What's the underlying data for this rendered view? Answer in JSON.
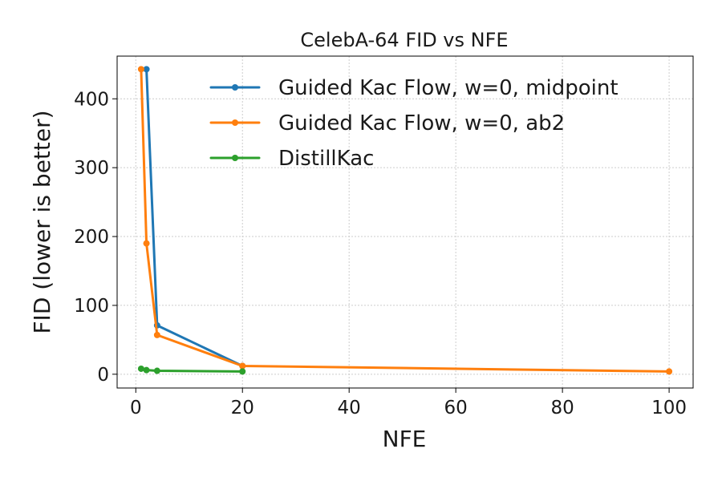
{
  "chart_data": {
    "type": "line",
    "title": "CelebA-64 FID vs NFE",
    "xlabel": "NFE",
    "ylabel": "FID (lower is better)",
    "xlim": [
      -3.5,
      104.5
    ],
    "ylim": [
      -20,
      462
    ],
    "xticks": [
      0,
      20,
      40,
      60,
      80,
      100
    ],
    "yticks": [
      0,
      100,
      200,
      300,
      400
    ],
    "grid": true,
    "legend_position": "top-right",
    "series": [
      {
        "name": "Guided Kac Flow, w=0, midpoint",
        "color": "#1f77b4",
        "x": [
          2,
          4,
          20
        ],
        "y": [
          443,
          71,
          12
        ]
      },
      {
        "name": "Guided Kac Flow, w=0, ab2",
        "color": "#ff7f0e",
        "x": [
          1,
          2,
          4,
          20,
          100
        ],
        "y": [
          443,
          190,
          57,
          12,
          4
        ]
      },
      {
        "name": "DistillKac",
        "color": "#2ca02c",
        "x": [
          1,
          2,
          4,
          20
        ],
        "y": [
          8,
          6,
          5,
          4
        ]
      }
    ]
  }
}
